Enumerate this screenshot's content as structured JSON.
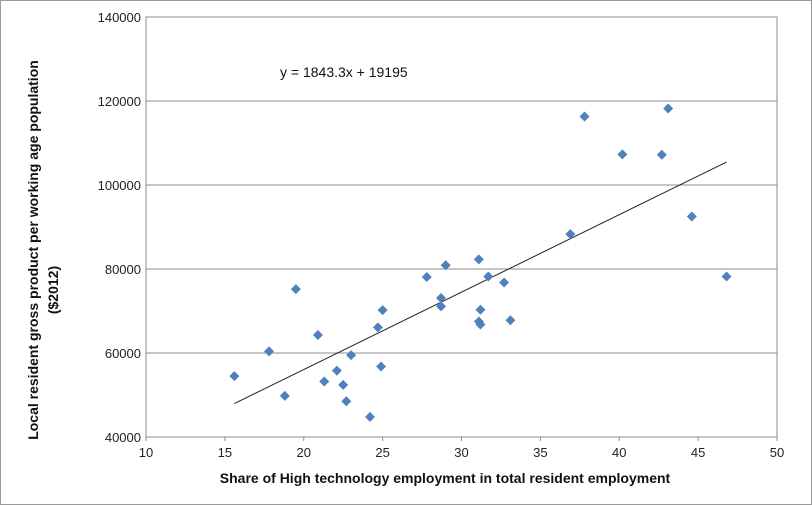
{
  "chart_data": {
    "type": "scatter",
    "title": "",
    "xlabel": "Share of High technology employment in total resident employment",
    "ylabel_lines": [
      "Local resident gross product per working age population",
      "($2012)"
    ],
    "xlim": [
      10,
      50
    ],
    "ylim": [
      40000,
      140000
    ],
    "xticks": [
      "10",
      "15",
      "20",
      "25",
      "30",
      "35",
      "40",
      "45",
      "50"
    ],
    "yticks": [
      "40000",
      "60000",
      "80000",
      "100000",
      "120000",
      "140000"
    ],
    "grid": "horizontal",
    "legend": "none",
    "marker_color": "#4f81bd",
    "trendline": {
      "equation": "y = 1843.3x + 19195",
      "slope": 1843.3,
      "intercept": 19195,
      "x_range": [
        15.6,
        46.8
      ]
    },
    "series": [
      {
        "points": [
          [
            15.6,
            54500
          ],
          [
            17.8,
            60400
          ],
          [
            18.8,
            49800
          ],
          [
            19.5,
            75200
          ],
          [
            20.9,
            64300
          ],
          [
            21.3,
            53200
          ],
          [
            22.1,
            55800
          ],
          [
            22.5,
            52400
          ],
          [
            22.7,
            48500
          ],
          [
            23.0,
            59500
          ],
          [
            24.2,
            44800
          ],
          [
            24.7,
            66100
          ],
          [
            24.9,
            56800
          ],
          [
            25.0,
            70200
          ],
          [
            27.8,
            78100
          ],
          [
            28.7,
            73100
          ],
          [
            28.7,
            71100
          ],
          [
            29.0,
            80900
          ],
          [
            31.1,
            82300
          ],
          [
            31.1,
            67500
          ],
          [
            31.2,
            66800
          ],
          [
            31.2,
            70300
          ],
          [
            31.7,
            78200
          ],
          [
            32.7,
            76800
          ],
          [
            33.1,
            67800
          ],
          [
            36.9,
            88300
          ],
          [
            37.8,
            116300
          ],
          [
            40.2,
            107300
          ],
          [
            42.7,
            107200
          ],
          [
            43.1,
            118200
          ],
          [
            44.6,
            92500
          ],
          [
            46.8,
            78200
          ]
        ]
      }
    ]
  }
}
